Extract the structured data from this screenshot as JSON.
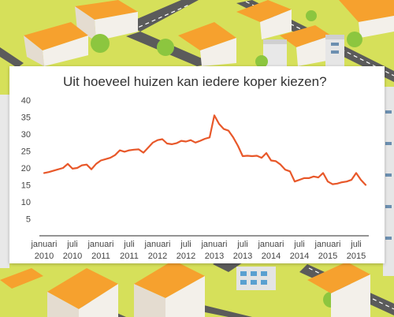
{
  "colors": {
    "background": "#d6e05a",
    "road": "#5a5a5a",
    "roof": "#f6a12e",
    "house_wall": "#f3f0ea",
    "tree": "#8cc63f",
    "line": "#e8582a",
    "axis": "#555555"
  },
  "chart_data": {
    "type": "line",
    "title": "Uit hoeveel huizen kan iedere koper kiezen?",
    "xlabel": "",
    "ylabel": "",
    "ylim": [
      0,
      40
    ],
    "yticks": [
      5,
      10,
      15,
      20,
      25,
      30,
      35,
      40
    ],
    "grid": false,
    "x_tick_labels": [
      {
        "month": 0,
        "line1": "januari",
        "line2": "2010"
      },
      {
        "month": 6,
        "line1": "juli",
        "line2": "2010"
      },
      {
        "month": 12,
        "line1": "januari",
        "line2": "2011"
      },
      {
        "month": 18,
        "line1": "juli",
        "line2": "2011"
      },
      {
        "month": 24,
        "line1": "januari",
        "line2": "2012"
      },
      {
        "month": 30,
        "line1": "juli",
        "line2": "2012"
      },
      {
        "month": 36,
        "line1": "januari",
        "line2": "2013"
      },
      {
        "month": 42,
        "line1": "juli",
        "line2": "2013"
      },
      {
        "month": 48,
        "line1": "januari",
        "line2": "2014"
      },
      {
        "month": 54,
        "line1": "juli",
        "line2": "2014"
      },
      {
        "month": 60,
        "line1": "januari",
        "line2": "2015"
      },
      {
        "month": 66,
        "line1": "juli",
        "line2": "2015"
      }
    ],
    "series": [
      {
        "month": [
          0,
          1,
          2,
          3,
          4,
          5,
          6,
          7,
          8,
          9,
          10,
          11,
          12,
          13,
          14,
          15,
          16,
          17,
          18,
          19,
          20,
          21,
          22,
          23,
          24,
          25,
          26,
          27,
          28,
          29,
          30,
          31,
          32,
          33,
          34,
          35,
          36,
          37,
          38,
          39,
          40,
          41,
          42,
          43,
          44,
          45,
          46,
          47,
          48,
          49,
          50,
          51,
          52,
          53,
          54,
          55,
          56,
          57,
          58,
          59,
          60,
          61,
          62,
          63,
          64,
          65,
          66,
          67,
          68
        ],
        "values": [
          18.5,
          18.8,
          19.2,
          19.6,
          20.0,
          21.2,
          19.8,
          20.0,
          20.8,
          21.0,
          19.6,
          21.2,
          22.2,
          22.6,
          23.0,
          23.8,
          25.2,
          24.8,
          25.2,
          25.4,
          25.5,
          24.5,
          26.0,
          27.5,
          28.2,
          28.5,
          27.2,
          27.0,
          27.3,
          28.0,
          27.8,
          28.2,
          27.5,
          28.0,
          28.6,
          29.0,
          35.5,
          33.0,
          31.5,
          31.0,
          29.0,
          26.5,
          23.5,
          23.6,
          23.5,
          23.6,
          23.0,
          24.4,
          22.2,
          22.0,
          21.0,
          19.5,
          19.0,
          16.0,
          16.5,
          17.0,
          17.0,
          17.5,
          17.2,
          18.5,
          16.0,
          15.2,
          15.4,
          15.8,
          16.0,
          16.5,
          18.5,
          16.5,
          15.0
        ]
      }
    ]
  }
}
